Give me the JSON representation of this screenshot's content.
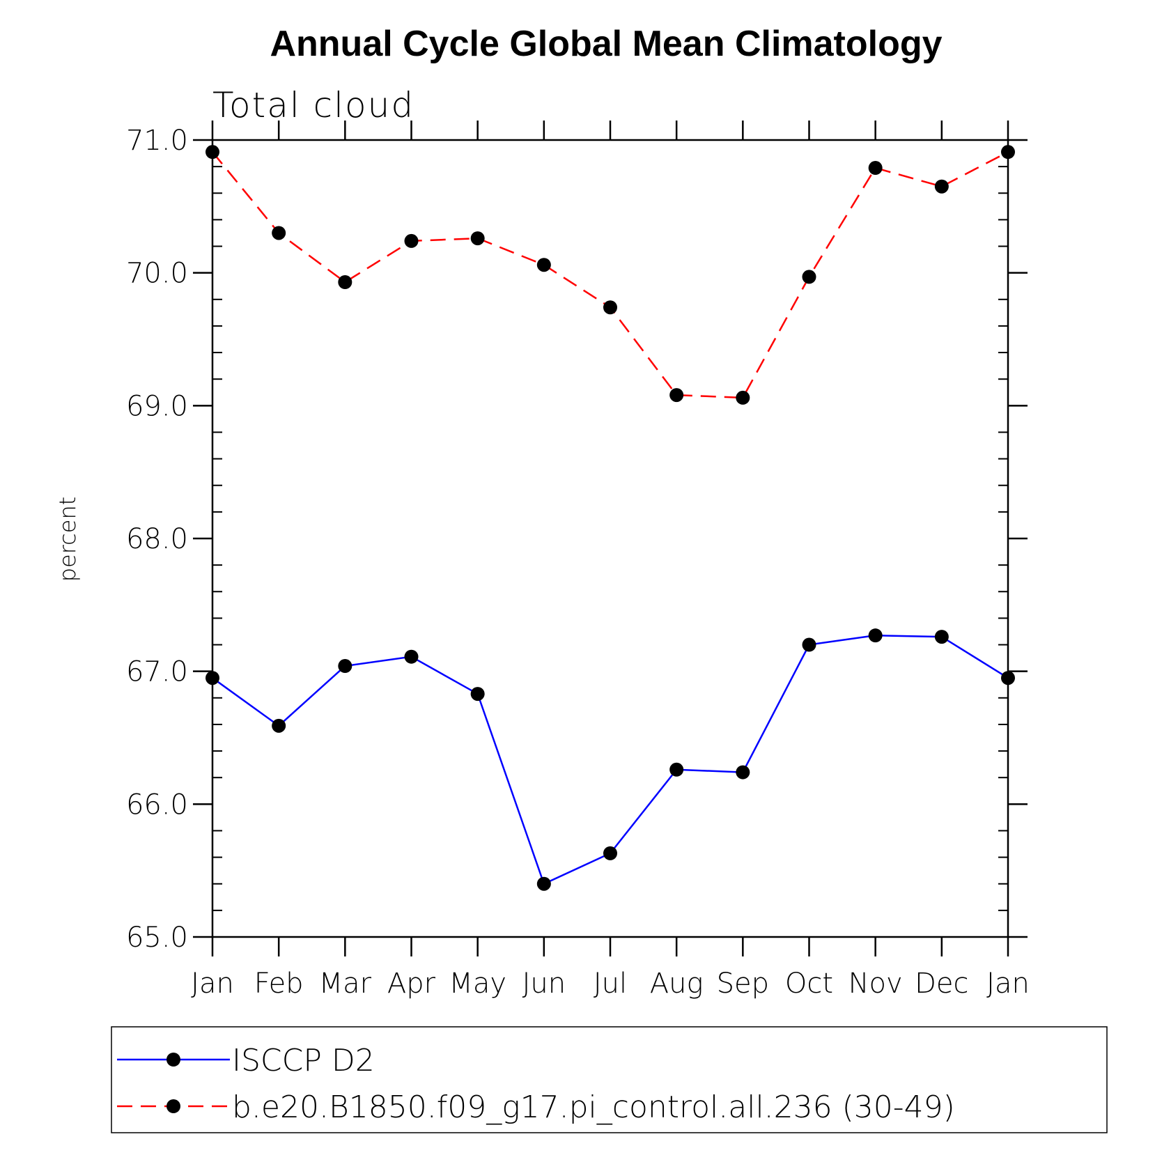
{
  "chart_data": {
    "type": "line",
    "title": "Annual Cycle Global Mean Climatology",
    "subtitle": "Total cloud",
    "xlabel": "",
    "ylabel": "percent",
    "categories": [
      "Jan",
      "Feb",
      "Mar",
      "Apr",
      "May",
      "Jun",
      "Jul",
      "Aug",
      "Sep",
      "Oct",
      "Nov",
      "Dec",
      "Jan"
    ],
    "ylim": [
      65.0,
      71.0
    ],
    "yticks": [
      "65.0",
      "66.0",
      "67.0",
      "68.0",
      "69.0",
      "70.0",
      "71.0"
    ],
    "grid": false,
    "legend_position": "bottom",
    "series": [
      {
        "name": "ISCCP D2",
        "color": "#0000ff",
        "line_style": "solid",
        "marker": "filled-circle",
        "values": [
          66.95,
          66.59,
          67.04,
          67.11,
          66.83,
          65.4,
          65.63,
          66.26,
          66.24,
          67.2,
          67.27,
          67.26,
          66.95
        ]
      },
      {
        "name": "b.e20.B1850.f09_g17.pi_control.all.236 (30-49)",
        "color": "#ff0000",
        "line_style": "dashed",
        "marker": "filled-circle",
        "values": [
          70.91,
          70.3,
          69.93,
          70.24,
          70.26,
          70.06,
          69.74,
          69.08,
          69.06,
          69.97,
          70.79,
          70.65,
          70.91
        ]
      }
    ]
  }
}
